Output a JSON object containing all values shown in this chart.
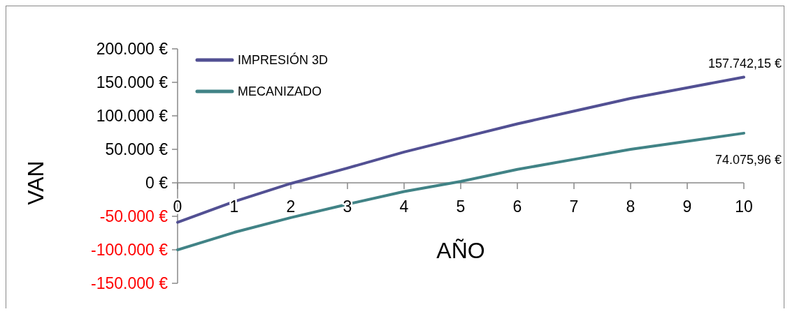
{
  "chart_data": {
    "type": "line",
    "xlabel": "AÑO",
    "ylabel": "VAN",
    "x": [
      0,
      1,
      2,
      3,
      4,
      5,
      6,
      7,
      8,
      9,
      10
    ],
    "xlim": [
      0,
      10
    ],
    "xticks": [
      0,
      1,
      2,
      3,
      4,
      5,
      6,
      7,
      8,
      9,
      10
    ],
    "ylim": [
      -150000,
      200000
    ],
    "yticks": [
      {
        "value": -150000,
        "label": "-150.000 €"
      },
      {
        "value": -100000,
        "label": "-100.000 €"
      },
      {
        "value": -50000,
        "label": "-50.000 €"
      },
      {
        "value": 0,
        "label": "0 €"
      },
      {
        "value": 50000,
        "label": "50.000 €"
      },
      {
        "value": 100000,
        "label": "100.000 €"
      },
      {
        "value": 150000,
        "label": "150.000 €"
      },
      {
        "value": 200000,
        "label": "200.000 €"
      }
    ],
    "series": [
      {
        "name": "IMPRESIÓN 3D",
        "color": "#525093",
        "values": [
          -59000,
          -28000,
          -1000,
          22000,
          46000,
          67000,
          88000,
          107000,
          126000,
          142000,
          157742.15
        ],
        "value_labels": [
          null,
          null,
          null,
          null,
          null,
          null,
          null,
          null,
          null,
          null,
          "157.742,15 €"
        ]
      },
      {
        "name": "MECANIZADO",
        "color": "#418386",
        "values": [
          -100000,
          -74000,
          -52000,
          -32000,
          -13000,
          2000,
          20000,
          35000,
          50000,
          62000,
          74075.96
        ],
        "value_labels": [
          null,
          null,
          null,
          null,
          null,
          null,
          null,
          null,
          null,
          null,
          "74.075,96 €"
        ]
      }
    ],
    "grid": false,
    "legend": "top left",
    "marker": "none",
    "line_style": "solid"
  }
}
